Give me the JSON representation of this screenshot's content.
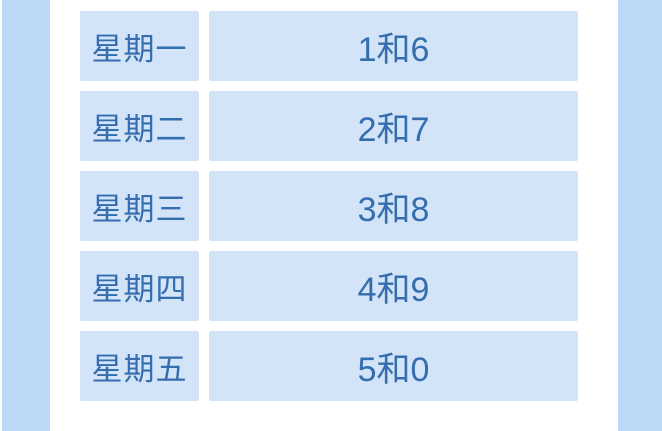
{
  "page": {
    "background_color": "#ffffff",
    "side_strip_color": "#bdd9f8",
    "cell_background_color": "#d3e3f8",
    "text_color": "#336fae"
  },
  "table": {
    "rows": [
      {
        "day": "星期一",
        "numbers": "1和6"
      },
      {
        "day": "星期二",
        "numbers": "2和7"
      },
      {
        "day": "星期三",
        "numbers": "3和8"
      },
      {
        "day": "星期四",
        "numbers": "4和9"
      },
      {
        "day": "星期五",
        "numbers": "5和0"
      }
    ]
  },
  "chart_data": {
    "type": "table",
    "categories": [
      "星期一",
      "星期二",
      "星期三",
      "星期四",
      "星期五"
    ],
    "values": [
      "1和6",
      "2和7",
      "3和8",
      "4和9",
      "5和0"
    ]
  }
}
